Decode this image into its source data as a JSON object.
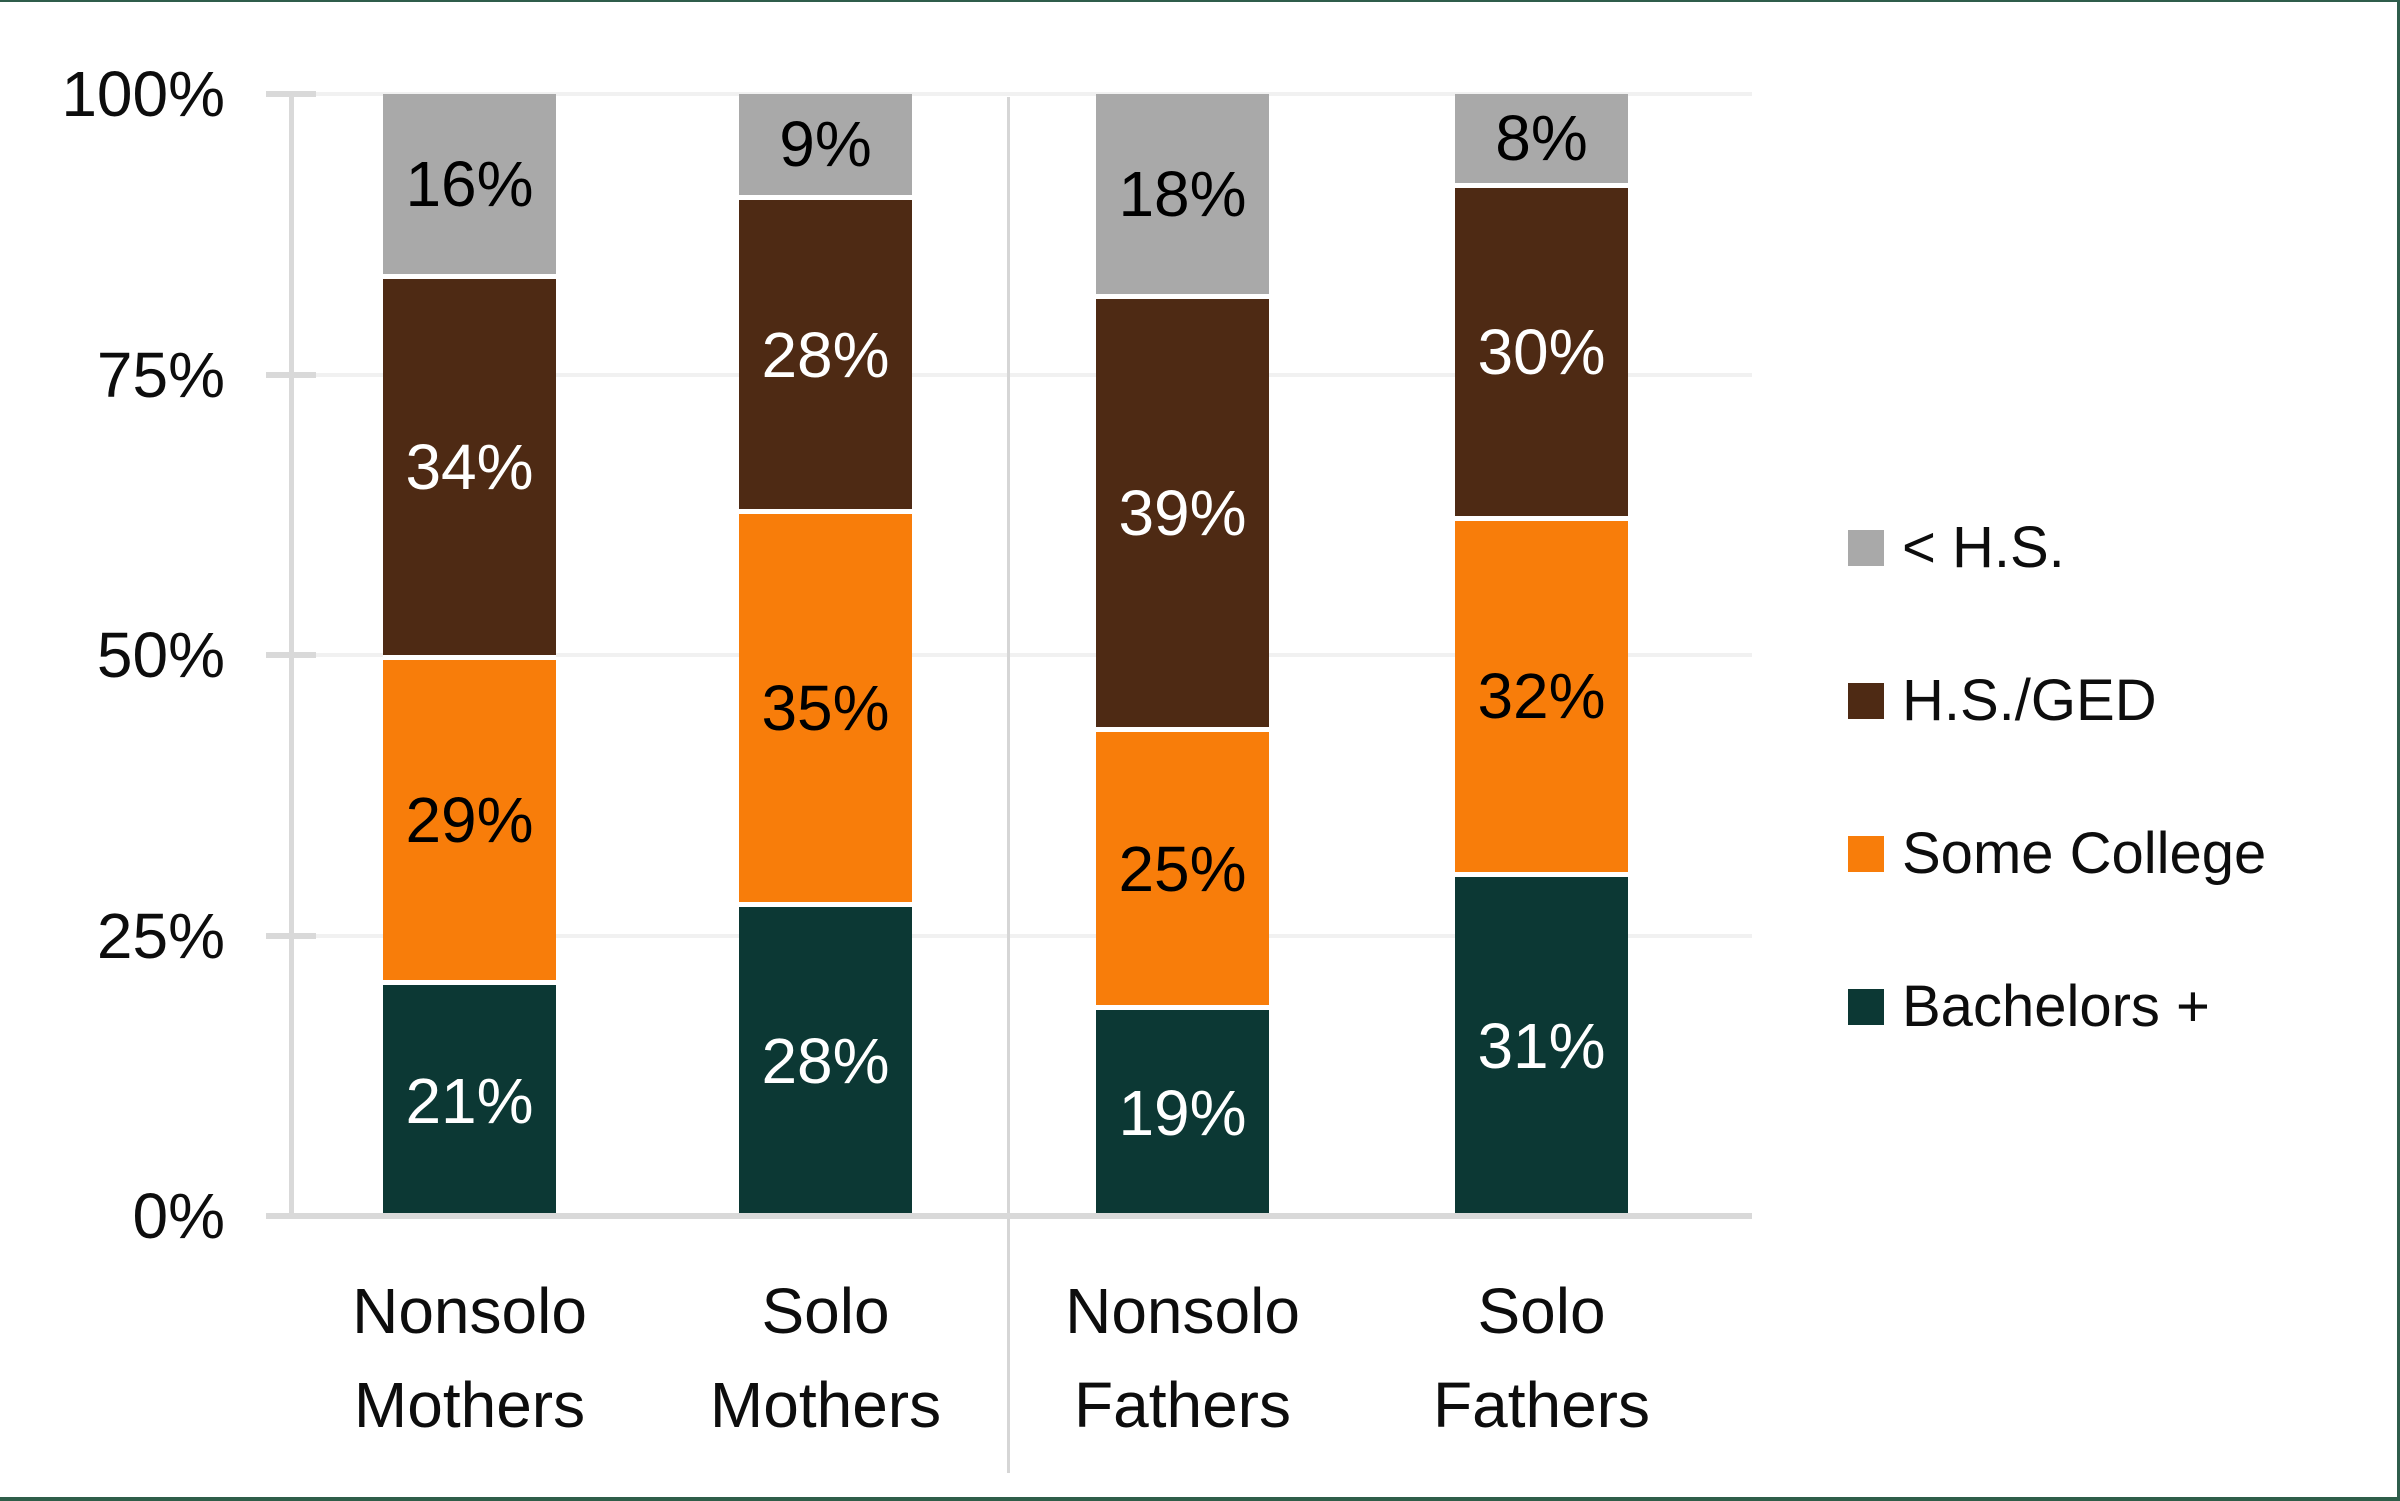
{
  "chart_data": {
    "type": "bar",
    "variant": "100-percent-stacked-column",
    "title": "",
    "xlabel": "",
    "ylabel": "",
    "categories": [
      {
        "line1": "Nonsolo",
        "line2": "Mothers"
      },
      {
        "line1": "Solo",
        "line2": "Mothers"
      },
      {
        "line1": "Nonsolo",
        "line2": "Fathers"
      },
      {
        "line1": "Solo",
        "line2": "Fathers"
      }
    ],
    "series": [
      {
        "name": "< H.S.",
        "color": "#A9A9A9",
        "label_color": "#000000",
        "values": [
          16,
          9,
          18,
          8
        ]
      },
      {
        "name": "H.S./GED",
        "color": "#4E2A14",
        "label_color": "#FFFFFF",
        "values": [
          34,
          28,
          39,
          30
        ]
      },
      {
        "name": "Some College",
        "color": "#F87D0A",
        "label_color": "#000000",
        "values": [
          29,
          35,
          25,
          32
        ]
      },
      {
        "name": "Bachelors +",
        "color": "#0C3834",
        "label_color": "#FFFFFF",
        "values": [
          21,
          28,
          19,
          31
        ]
      }
    ],
    "stack_order_top_to_bottom": [
      "< H.S.",
      "H.S./GED",
      "Some College",
      "Bachelors +"
    ],
    "value_suffix": "%",
    "y_axis": {
      "min": 0,
      "max": 100,
      "ticks": [
        {
          "label": "100%",
          "value": 100
        },
        {
          "label": "75%",
          "value": 75
        },
        {
          "label": "50%",
          "value": 50
        },
        {
          "label": "25%",
          "value": 25
        },
        {
          "label": "0%",
          "value": 0
        }
      ],
      "grid": true
    },
    "legend": {
      "position": "right",
      "entries": [
        "< H.S.",
        "H.S./GED",
        "Some College",
        "Bachelors +"
      ]
    },
    "group_divider_between": [
      "Solo Mothers",
      "Nonsolo Fathers"
    ]
  },
  "colors": {
    "background": "#FFFFFF",
    "axis_line": "#D9D9D9",
    "gridline": "#F1F1F1",
    "divider": "#D6D6D6",
    "frame_border": "#2E5E49",
    "text": "#0D0D0D"
  }
}
